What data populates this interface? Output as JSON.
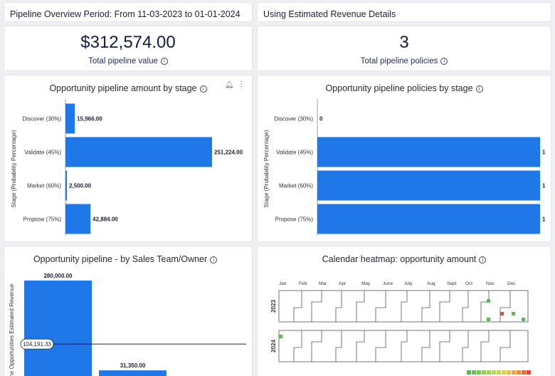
{
  "header": {
    "period_title": "Pipeline Overview Period: From 11-03-2023 to 01-01-2024",
    "revenue_mode": "Using Estimated Revenue Details"
  },
  "kpis": [
    {
      "value": "$312,574.00",
      "label": "Total pipeline value"
    },
    {
      "value": "3",
      "label": "Total pipeline policies"
    }
  ],
  "charts": {
    "amount_by_stage": {
      "title": "Opportunity pipeline amount by stage"
    },
    "policies_by_stage": {
      "title": "Opportunity pipeline policies by stage"
    },
    "sales_team": {
      "title": "Opportunity pipeline - by Sales Team/Owner"
    },
    "heatmap": {
      "title": "Calendar heatmap: opportunity amount"
    }
  },
  "colors": {
    "bar": "#1f77e8",
    "heat_low": "#5cb85c",
    "heat_high": "#e8453c"
  },
  "chart_data": [
    {
      "type": "bar",
      "orientation": "horizontal",
      "title": "Opportunity pipeline amount by stage",
      "ylabel": "Stage (Probability Percentage)",
      "categories": [
        "Discover (30%)",
        "Validate (45%)",
        "Market (60%)",
        "Propose (75%)"
      ],
      "values": [
        15966,
        251224,
        2500,
        42884
      ],
      "labels": [
        "15,966.00",
        "251,224.00",
        "2,500.00",
        "42,884.00"
      ]
    },
    {
      "type": "bar",
      "orientation": "horizontal",
      "title": "Opportunity pipeline policies by stage",
      "ylabel": "Stage (Probability Percentage)",
      "categories": [
        "Discover (30%)",
        "Validate (45%)",
        "Market (60%)",
        "Propose (75%)"
      ],
      "values": [
        0,
        1,
        1,
        1
      ],
      "labels": [
        "0",
        "1",
        "1",
        "1"
      ]
    },
    {
      "type": "bar",
      "title": "Opportunity pipeline - by Sales Team/Owner",
      "ylabel": "Pipeline Opportunities Estimated Revenue",
      "values": [
        280000,
        31350
      ],
      "labels": [
        "280,000.00",
        "31,350.00"
      ],
      "reference_line": {
        "value": 104191.33,
        "label": "104,191.33"
      }
    },
    {
      "type": "heatmap",
      "title": "Calendar heatmap: opportunity amount",
      "years": [
        "2023",
        "2024"
      ],
      "months": [
        "Jan",
        "Feb",
        "Mar",
        "Apr",
        "May",
        "June",
        "July",
        "Aug",
        "Sept",
        "Oct",
        "Nov",
        "Dec"
      ],
      "highlighted_cells": [
        {
          "year": "2023",
          "month": "Nov",
          "level": "low"
        },
        {
          "year": "2023",
          "month": "Nov",
          "level": "low"
        },
        {
          "year": "2023",
          "month": "Nov",
          "level": "high"
        },
        {
          "year": "2023",
          "month": "Dec",
          "level": "low"
        },
        {
          "year": "2023",
          "month": "Dec",
          "level": "low"
        },
        {
          "year": "2024",
          "month": "Jan",
          "level": "low"
        }
      ]
    }
  ]
}
